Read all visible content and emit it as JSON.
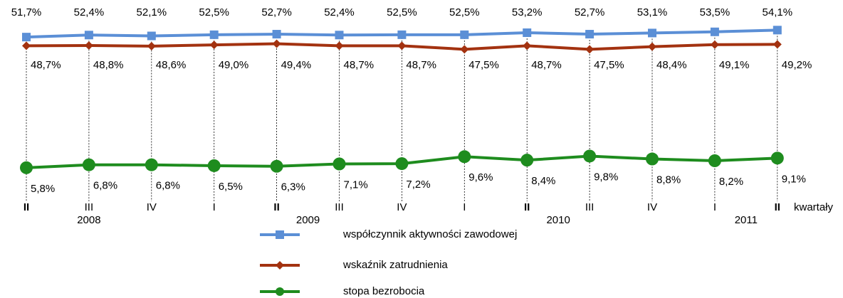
{
  "chart_data": {
    "type": "line",
    "categories": [
      "II",
      "III",
      "IV",
      "I",
      "II",
      "III",
      "IV",
      "I",
      "II",
      "III",
      "IV",
      "I",
      "II"
    ],
    "years": [
      "2008",
      "2009",
      "2010",
      "2011"
    ],
    "x_label": "kwartały",
    "ylim": [
      -4,
      62
    ],
    "y2lim": [
      -5,
      61
    ],
    "series": [
      {
        "name": "współczynnik aktywności  zawodowej",
        "color": "#5b8fd6",
        "marker": "square",
        "values": [
          51.7,
          52.4,
          52.1,
          52.5,
          52.7,
          52.4,
          52.5,
          52.5,
          53.2,
          52.7,
          53.1,
          53.5,
          54.1
        ],
        "value_labels": [
          "51,7%",
          "52,4%",
          "52,1%",
          "52,5%",
          "52,7%",
          "52,4%",
          "52,5%",
          "52,5%",
          "53,2%",
          "52,7%",
          "53,1%",
          "53,5%",
          "54,1%"
        ]
      },
      {
        "name": "wskaźnik zatrudnienia",
        "color": "#a33210",
        "marker": "diamond",
        "values": [
          48.7,
          48.8,
          48.6,
          49.0,
          49.4,
          48.7,
          48.7,
          47.5,
          48.7,
          47.5,
          48.4,
          49.1,
          49.2
        ],
        "value_labels": [
          "48,7%",
          "48,8%",
          "48,6%",
          "49,0%",
          "49,4%",
          "48,7%",
          "48,7%",
          "47,5%",
          "48,7%",
          "47,5%",
          "48,4%",
          "49,1%",
          "49,2%"
        ]
      },
      {
        "name": "stopa bezrobocia",
        "color": "#1e8c1e",
        "marker": "circle",
        "axis": "y2",
        "values": [
          5.8,
          6.8,
          6.8,
          6.5,
          6.3,
          7.1,
          7.2,
          9.6,
          8.4,
          9.8,
          8.8,
          8.2,
          9.1
        ],
        "value_labels": [
          "5,8%",
          "6,8%",
          "6,8%",
          "6,5%",
          "6,3%",
          "7,1%",
          "7,2%",
          "9,6%",
          "8,4%",
          "9,8%",
          "8,8%",
          "8,2%",
          "9,1%"
        ]
      }
    ]
  }
}
